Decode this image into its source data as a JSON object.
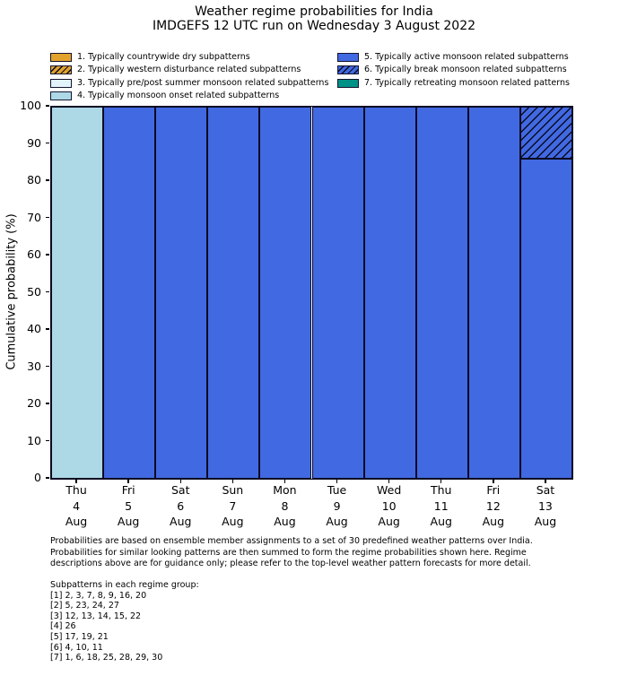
{
  "title": {
    "line1": "Weather regime probabilities for India",
    "line2": "IMDGEFS 12 UTC run on Wednesday 3 August 2022"
  },
  "chart_data": {
    "type": "bar",
    "stacked": true,
    "title": "Weather regime probabilities for India",
    "subtitle": "IMDGEFS 12 UTC run on Wednesday 3 August 2022",
    "ylabel": "Cumulative probability (%)",
    "ylim": [
      0,
      100
    ],
    "ytick_step": 10,
    "ytick_labels": [
      "0",
      "10",
      "20",
      "30",
      "40",
      "50",
      "60",
      "70",
      "80",
      "90",
      "100"
    ],
    "grid": false,
    "legend_position": "top",
    "categories": [
      "Thu 4 Aug",
      "Fri 5 Aug",
      "Sat 6 Aug",
      "Sun 7 Aug",
      "Mon 8 Aug",
      "Tue 9 Aug",
      "Wed 10 Aug",
      "Thu 11 Aug",
      "Fri 12 Aug",
      "Sat 13 Aug"
    ],
    "category_lines": [
      [
        "Thu",
        "4",
        "Aug"
      ],
      [
        "Fri",
        "5",
        "Aug"
      ],
      [
        "Sat",
        "6",
        "Aug"
      ],
      [
        "Sun",
        "7",
        "Aug"
      ],
      [
        "Mon",
        "8",
        "Aug"
      ],
      [
        "Tue",
        "9",
        "Aug"
      ],
      [
        "Wed",
        "10",
        "Aug"
      ],
      [
        "Thu",
        "11",
        "Aug"
      ],
      [
        "Fri",
        "12",
        "Aug"
      ],
      [
        "Sat",
        "13",
        "Aug"
      ]
    ],
    "regimes": [
      {
        "id": 1,
        "label": "1. Typically countrywide dry subpatterns",
        "color": "#E2A32D",
        "hatch": false
      },
      {
        "id": 2,
        "label": "2. Typically western disturbance related subpatterns",
        "color": "#E2A32D",
        "hatch": true
      },
      {
        "id": 3,
        "label": "3. Typically pre/post summer monsoon related subpatterns",
        "color": "#E2F4FA",
        "hatch": false
      },
      {
        "id": 4,
        "label": "4. Typically monsoon onset related subpatterns",
        "color": "#ADD8E6",
        "hatch": false
      },
      {
        "id": 5,
        "label": "5. Typically active monsoon related subpatterns",
        "color": "#4169E1",
        "hatch": false
      },
      {
        "id": 6,
        "label": "6. Typically break monsoon related subpatterns",
        "color": "#4169E1",
        "hatch": true
      },
      {
        "id": 7,
        "label": "7. Typically retreating monsoon related patterns",
        "color": "#009187",
        "hatch": false
      }
    ],
    "legend_columns": [
      [
        1,
        2,
        3,
        4
      ],
      [
        5,
        6,
        7
      ]
    ],
    "series": [
      {
        "regime": 4,
        "name": "Typically monsoon onset related subpatterns",
        "values": [
          100,
          0,
          0,
          0,
          0,
          0,
          0,
          0,
          0,
          0
        ]
      },
      {
        "regime": 5,
        "name": "Typically active monsoon related subpatterns",
        "values": [
          0,
          100,
          100,
          100,
          100,
          100,
          100,
          100,
          100,
          86
        ]
      },
      {
        "regime": 6,
        "name": "Typically break monsoon related subpatterns",
        "values": [
          0,
          0,
          0,
          0,
          0,
          0,
          0,
          0,
          0,
          14
        ]
      }
    ],
    "edge_color": "#0a0a23"
  },
  "footnote": {
    "lines": [
      "Probabilities are based on ensemble member assignments to a set of 30 predefined weather patterns over India.",
      "Probabilities for similar looking patterns are then summed to form the regime probabilities shown here. Regime",
      "descriptions above are for guidance only; please refer to the top-level weather pattern forecasts for more detail."
    ]
  },
  "subpatterns": {
    "heading": "Subpatterns in each regime group:",
    "lines": [
      "[1] 2, 3, 7, 8, 9, 16, 20",
      "[2] 5, 23, 24, 27",
      "[3] 12, 13, 14, 15, 22",
      "[4] 26",
      "[5] 17, 19, 21",
      "[6] 4, 10, 11",
      "[7] 1, 6, 18, 25, 28, 29, 30"
    ]
  }
}
